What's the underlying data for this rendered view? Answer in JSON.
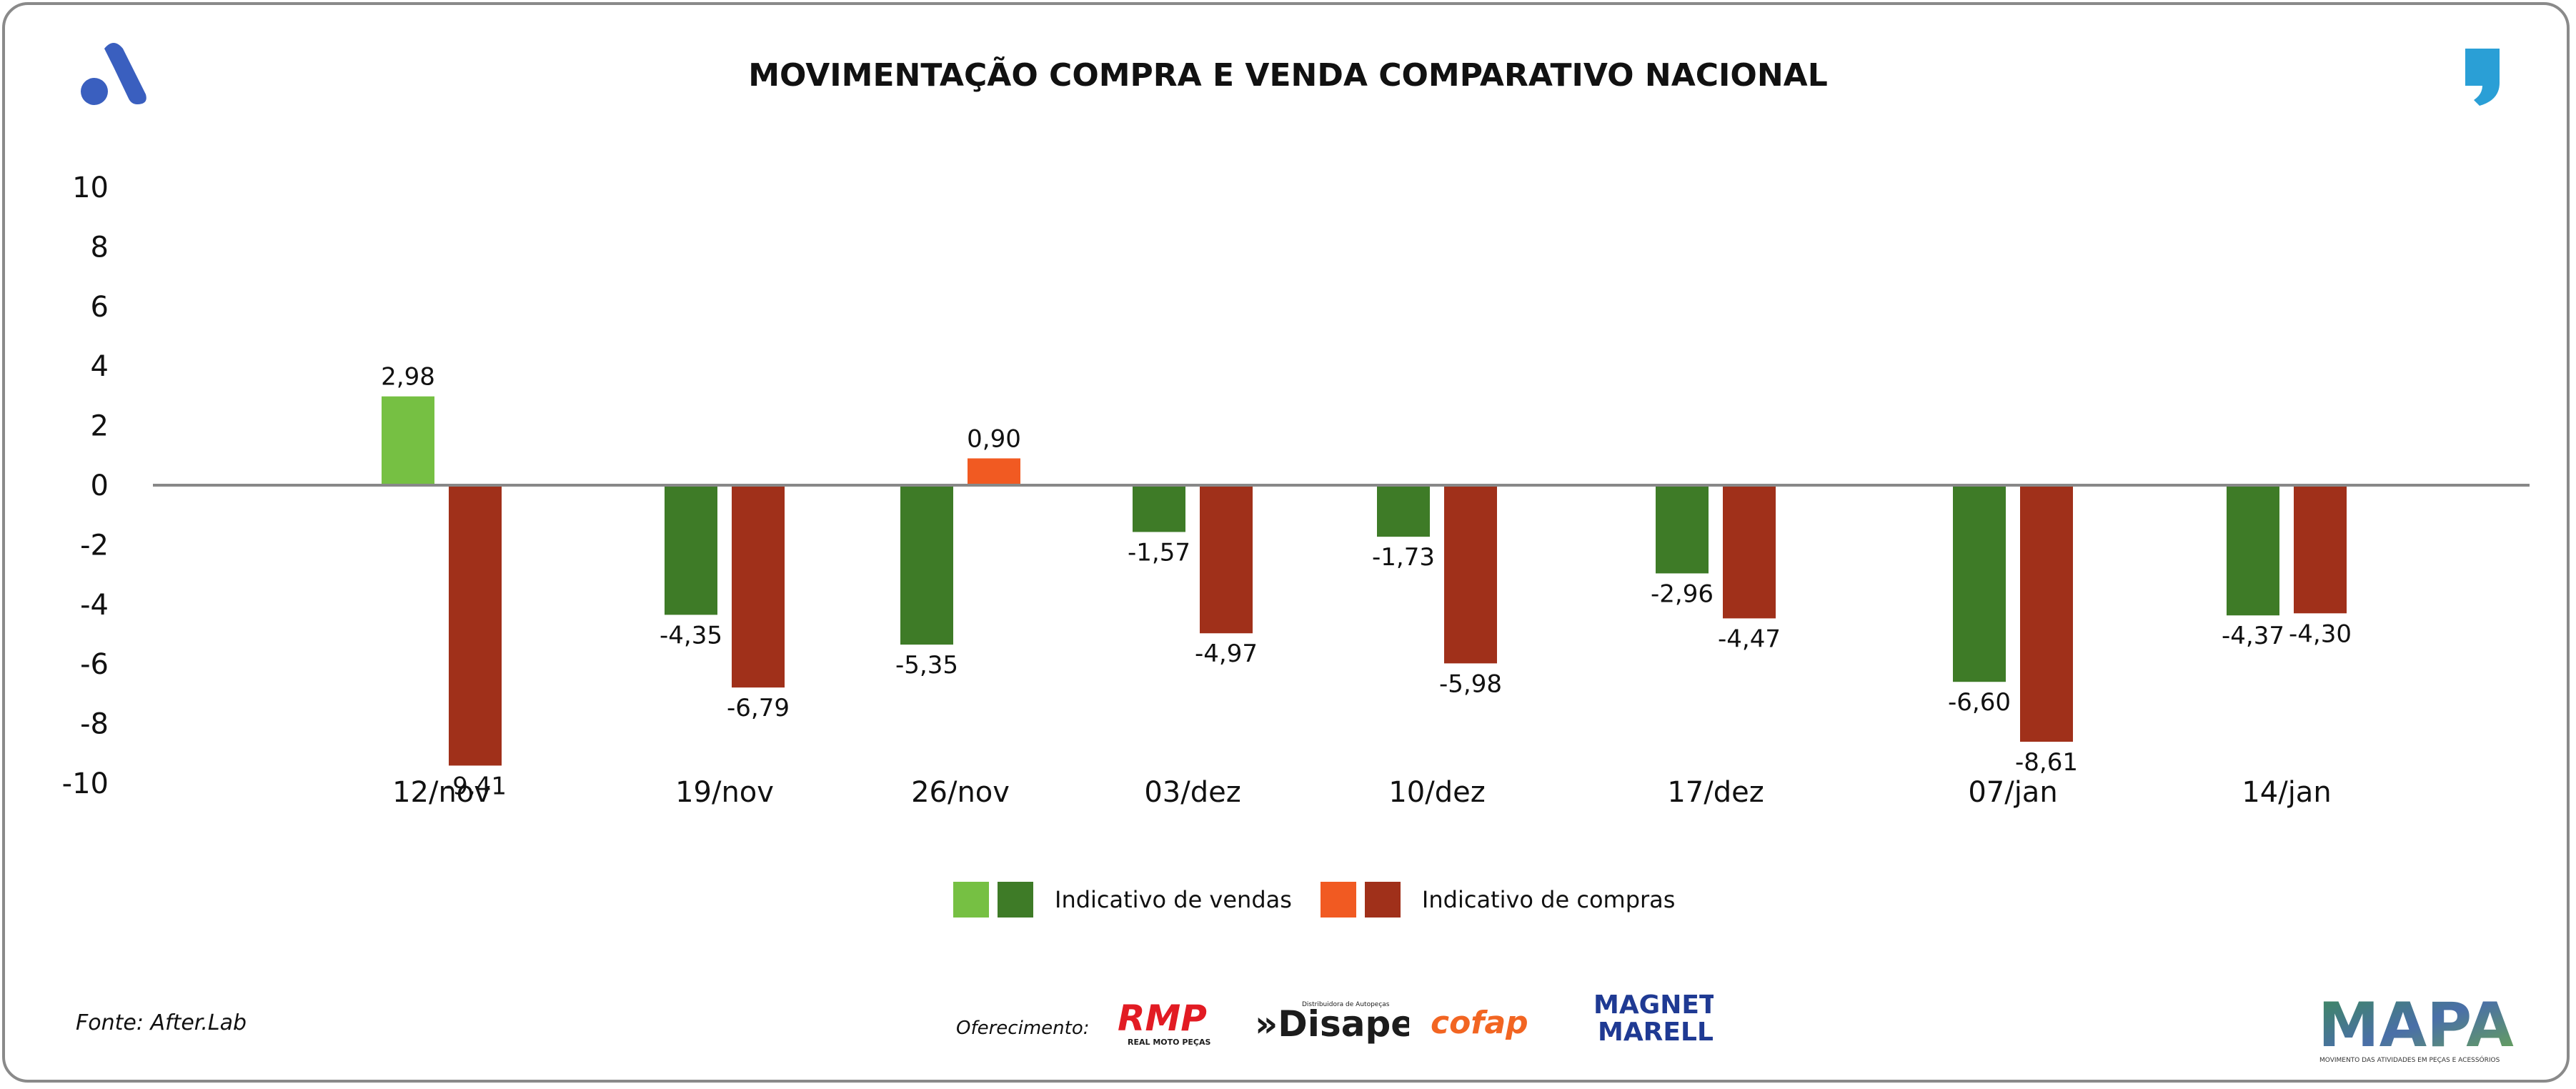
{
  "header": {
    "title": "MOVIMENTAÇÃO COMPRA E VENDA COMPARATIVO NACIONAL"
  },
  "chart_data": {
    "type": "bar",
    "title": "MOVIMENTAÇÃO COMPRA E VENDA COMPARATIVO NACIONAL",
    "categories": [
      "12/nov",
      "19/nov",
      "26/nov",
      "03/dez",
      "10/dez",
      "17/dez",
      "07/jan",
      "14/jan"
    ],
    "series": [
      {
        "name": "Indicativo de vendas",
        "values": [
          2.98,
          -4.35,
          -5.35,
          -1.57,
          -1.73,
          -2.96,
          -6.6,
          -4.37
        ],
        "labels": [
          "2,98",
          "-4,35",
          "-5,35",
          "-1,57",
          "-1,73",
          "-2,96",
          "-6,60",
          "-4,37"
        ],
        "color_positive": "#76c043",
        "color_negative": "#3e7b27"
      },
      {
        "name": "Indicativo de compras",
        "values": [
          -9.41,
          -6.79,
          0.9,
          -4.97,
          -5.98,
          -4.47,
          -8.61,
          -4.3
        ],
        "labels": [
          "-9,41",
          "-6,79",
          "0,90",
          "-4,97",
          "-5,98",
          "-4,47",
          "-8,61",
          "-4,30"
        ],
        "color_positive": "#f15a22",
        "color_negative": "#a0301a"
      }
    ],
    "ylim": [
      -10,
      10
    ],
    "yticks": [
      10,
      8,
      6,
      4,
      2,
      0,
      -2,
      -4,
      -6,
      -8,
      -10
    ],
    "ytick_labels": [
      "10",
      "8",
      "6",
      "4",
      "2",
      "0",
      "-2",
      "-4",
      "-6",
      "-8",
      "-10"
    ],
    "xlabel": "",
    "ylabel": "",
    "grid": false,
    "legend_position": "bottom-center"
  },
  "legend": {
    "sales_label": "Indicativo de vendas",
    "purchases_label": "Indicativo de compras"
  },
  "footer": {
    "source": "Fonte: After.Lab",
    "sponsor_label": "Oferecimento:"
  },
  "logos": {
    "rmp": "RMP",
    "rmp_sub": "REAL MOTO PEÇAS",
    "disape": "»Disape",
    "disape_sub": "Distribuidora de Autopeças",
    "cofap": "cofap",
    "magneti_1": "MAGNETI",
    "magneti_2": "MARELLI",
    "mapa": "MAPA",
    "mapa_sub": "MOVIMENTO DAS ATIVIDADES EM PEÇAS E ACESSÓRIOS"
  },
  "colors": {
    "axis": "#888888",
    "brand_blue": "#3a5fbf",
    "accent_cyan": "#2a9fd6"
  }
}
